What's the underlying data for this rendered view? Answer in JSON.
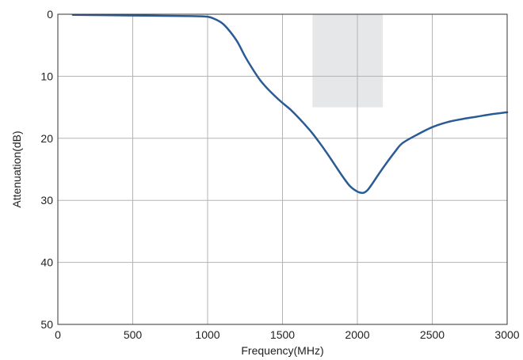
{
  "chart_data": {
    "type": "line",
    "title": "",
    "xlabel": "Frequency(MHz)",
    "ylabel": "Attenuation(dB)",
    "xlim": [
      0,
      3000
    ],
    "ylim": [
      0,
      50
    ],
    "y_inverted": true,
    "grid": true,
    "x_ticks": [
      "0",
      "500",
      "1000",
      "1500",
      "2000",
      "2500",
      "3000"
    ],
    "y_ticks": [
      "0",
      "10",
      "20",
      "30",
      "40",
      "50"
    ],
    "series": [
      {
        "color": "#2b5b94",
        "x": [
          100,
          300,
          500,
          700,
          900,
          1000,
          1050,
          1100,
          1150,
          1200,
          1250,
          1300,
          1350,
          1400,
          1450,
          1500,
          1550,
          1600,
          1650,
          1700,
          1750,
          1800,
          1850,
          1900,
          1950,
          2000,
          2030,
          2050,
          2070,
          2100,
          2150,
          2200,
          2250,
          2300,
          2400,
          2500,
          2600,
          2700,
          2800,
          2900,
          3000
        ],
        "y": [
          0.1,
          0.15,
          0.2,
          0.25,
          0.3,
          0.4,
          0.8,
          1.5,
          2.8,
          4.5,
          6.8,
          8.8,
          10.6,
          12.0,
          13.2,
          14.3,
          15.3,
          16.5,
          17.8,
          19.2,
          20.8,
          22.5,
          24.3,
          26.1,
          27.7,
          28.6,
          28.8,
          28.7,
          28.3,
          27.3,
          25.5,
          23.8,
          22.2,
          20.8,
          19.4,
          18.2,
          17.4,
          16.9,
          16.5,
          16.1,
          15.8
        ]
      }
    ],
    "highlight_band": {
      "x_range": [
        1700,
        2170
      ],
      "y_range": [
        0,
        15
      ],
      "color": "#e6e7e8"
    },
    "colors": {
      "grid": "#b3b3b3",
      "frame": "#333333",
      "line": "#2b5b94",
      "band": "#e6e7e8"
    }
  }
}
